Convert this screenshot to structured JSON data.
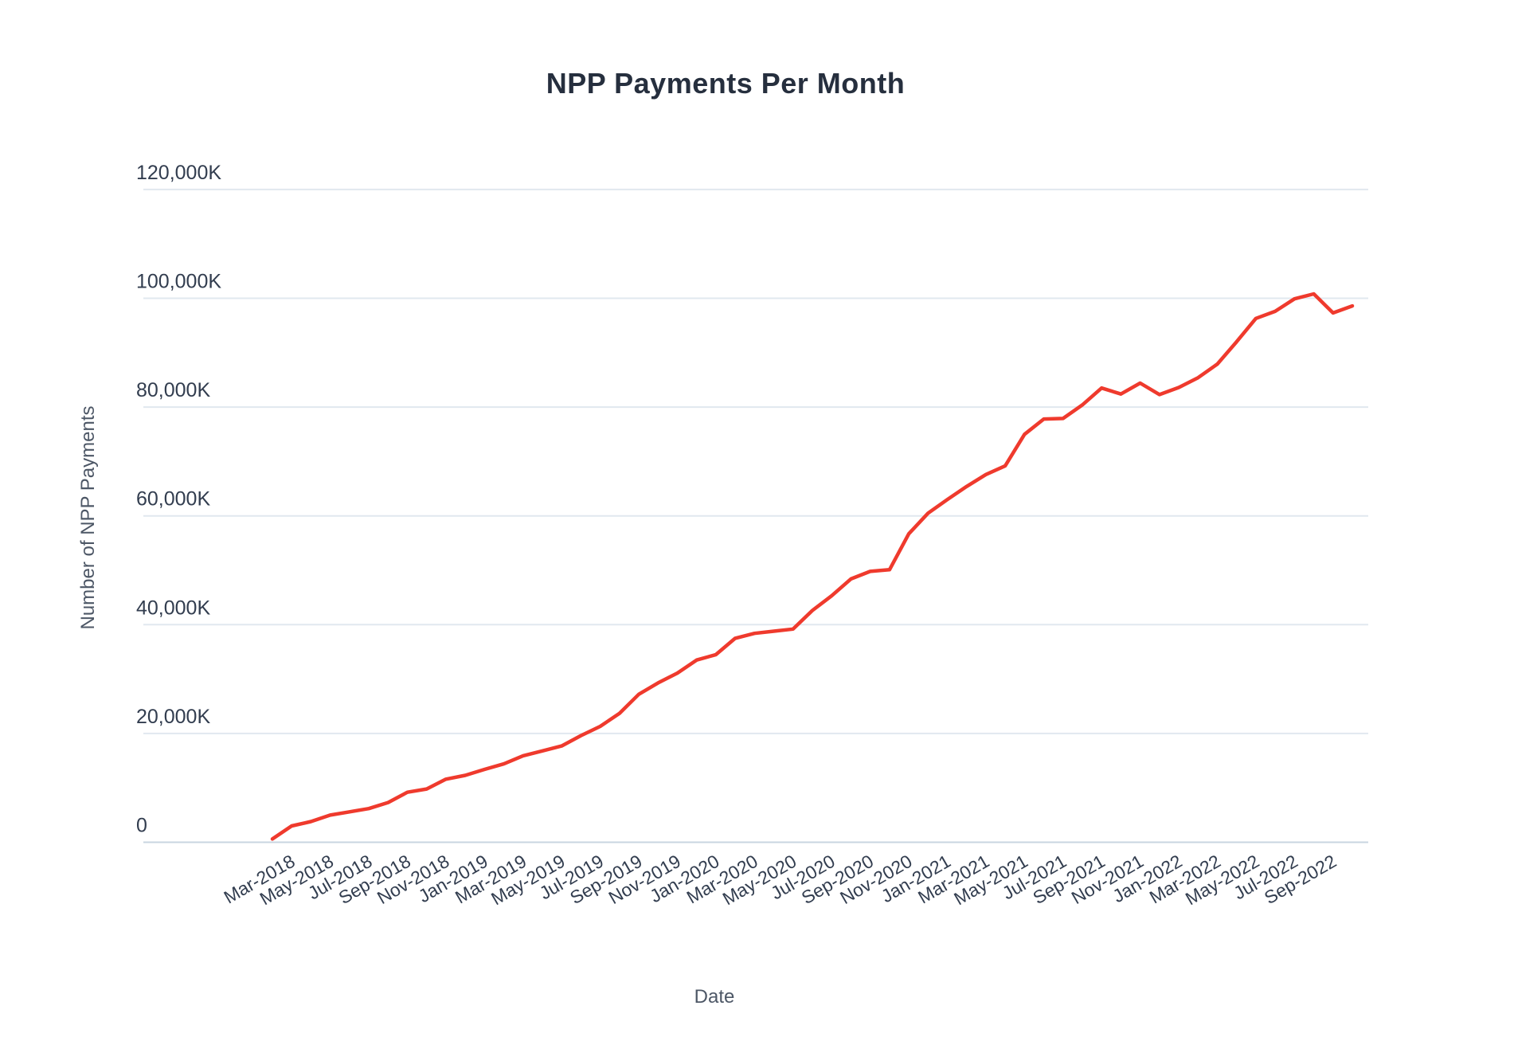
{
  "page": {
    "background_color": "#ffffff"
  },
  "chart_data": {
    "type": "line",
    "title": "NPP Payments Per Month",
    "xlabel": "Date",
    "ylabel": "Number of NPP Payments",
    "line_color": "#ef3a2d",
    "grid": "horizontal-only",
    "legend_position": "none",
    "unit_note": "y values are thousands of payments (axis shows K)",
    "ylim": [
      0,
      120000
    ],
    "y_tick_values": [
      0,
      20000,
      40000,
      60000,
      80000,
      100000,
      120000
    ],
    "y_tick_labels": [
      "0",
      "20,000K",
      "40,000K",
      "60,000K",
      "80,000K",
      "100,000K",
      "120,000K"
    ],
    "x_tick_labels": [
      "Mar-2018",
      "May-2018",
      "Jul-2018",
      "Sep-2018",
      "Nov-2018",
      "Jan-2019",
      "Mar-2019",
      "May-2019",
      "Jul-2019",
      "Sep-2019",
      "Nov-2019",
      "Jan-2020",
      "Mar-2020",
      "May-2020",
      "Jul-2020",
      "Sep-2020",
      "Nov-2020",
      "Jan-2021",
      "Mar-2021",
      "May-2021",
      "Jul-2021",
      "Sep-2021",
      "Nov-2021",
      "Jan-2022",
      "Mar-2022",
      "May-2022",
      "Jul-2022",
      "Sep-2022"
    ],
    "months": [
      "Feb-2018",
      "Mar-2018",
      "Apr-2018",
      "May-2018",
      "Jun-2018",
      "Jul-2018",
      "Aug-2018",
      "Sep-2018",
      "Oct-2018",
      "Nov-2018",
      "Dec-2018",
      "Jan-2019",
      "Feb-2019",
      "Mar-2019",
      "Apr-2019",
      "May-2019",
      "Jun-2019",
      "Jul-2019",
      "Aug-2019",
      "Sep-2019",
      "Oct-2019",
      "Nov-2019",
      "Dec-2019",
      "Jan-2020",
      "Feb-2020",
      "Mar-2020",
      "Apr-2020",
      "May-2020",
      "Jun-2020",
      "Jul-2020",
      "Aug-2020",
      "Sep-2020",
      "Oct-2020",
      "Nov-2020",
      "Dec-2020",
      "Jan-2021",
      "Feb-2021",
      "Mar-2021",
      "Apr-2021",
      "May-2021",
      "Jun-2021",
      "Jul-2021",
      "Aug-2021",
      "Sep-2021",
      "Oct-2021",
      "Nov-2021",
      "Dec-2021",
      "Jan-2022",
      "Feb-2022",
      "Mar-2022",
      "Apr-2022",
      "May-2022",
      "Jun-2022",
      "Jul-2022",
      "Aug-2022",
      "Sep-2022",
      "Oct-2022"
    ],
    "values": [
      600,
      3000,
      3800,
      5000,
      5600,
      6200,
      7300,
      9200,
      9800,
      11600,
      12300,
      13400,
      14400,
      15900,
      16800,
      17700,
      19600,
      21300,
      23700,
      27200,
      29300,
      31100,
      33500,
      34500,
      37500,
      38400,
      38800,
      39200,
      42600,
      45300,
      48400,
      49800,
      50100,
      56700,
      60500,
      63000,
      65400,
      67600,
      69200,
      75000,
      77800,
      77900,
      80400,
      83500,
      82400,
      84400,
      82300,
      83600,
      85400,
      87900,
      92000,
      96300,
      97600,
      99900,
      100800,
      97300,
      98600
    ]
  }
}
